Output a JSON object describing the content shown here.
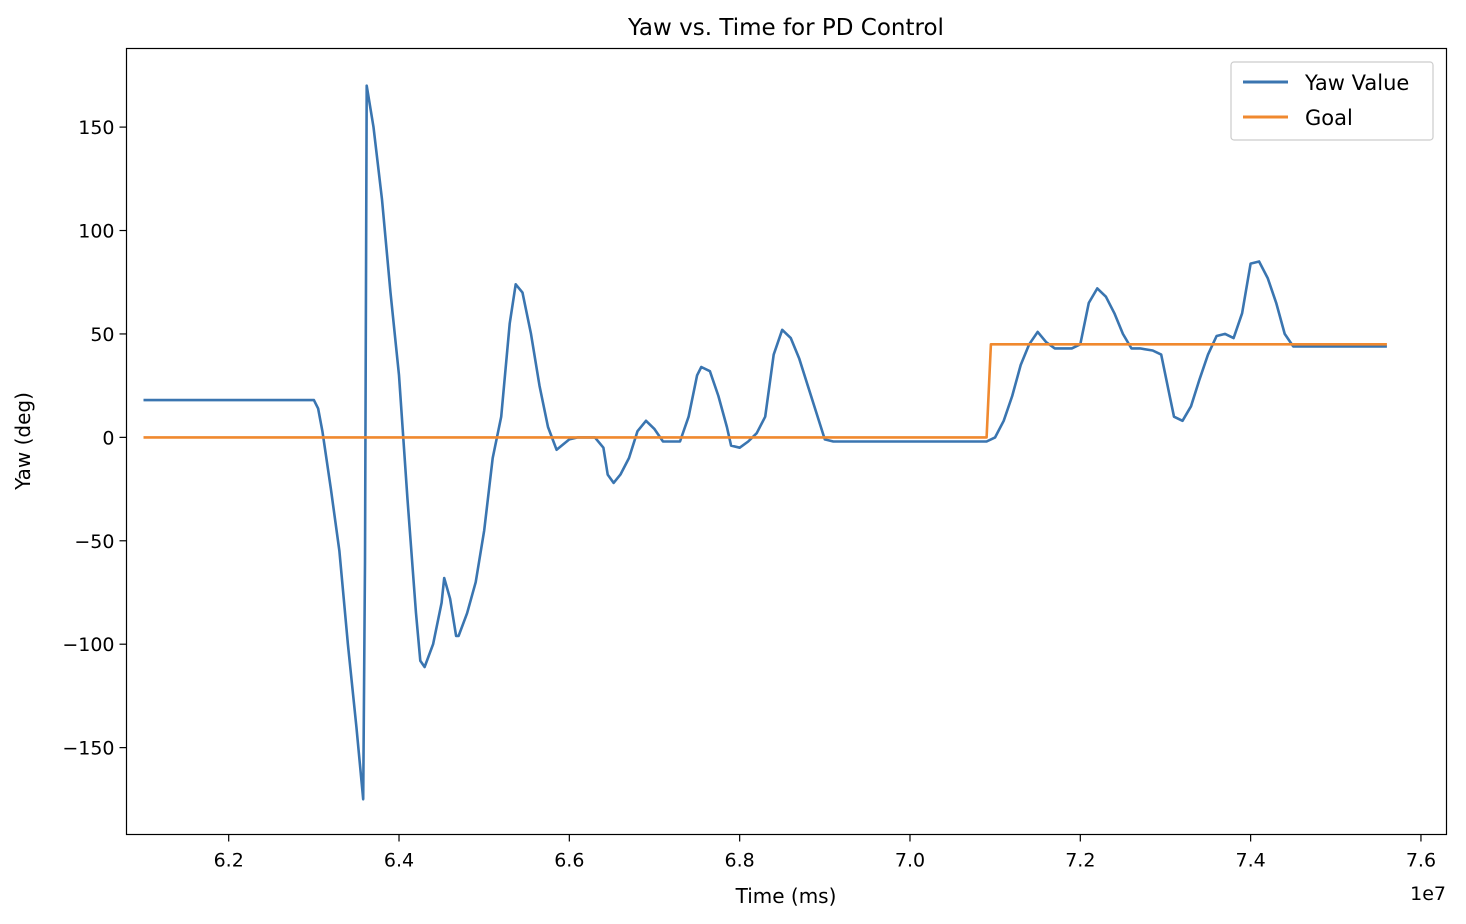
{
  "chart_data": {
    "type": "line",
    "title": "Yaw vs. Time for PD Control",
    "xlabel": "Time (ms)",
    "ylabel": "Yaw (deg)",
    "x_offset_label": "1e7",
    "xlim": [
      6.08,
      7.63
    ],
    "ylim": [
      -192,
      188
    ],
    "x_ticks": [
      6.2,
      6.4,
      6.6,
      6.8,
      7.0,
      7.2,
      7.4,
      7.6
    ],
    "x_tick_labels": [
      "6.2",
      "6.4",
      "6.6",
      "6.8",
      "7.0",
      "7.2",
      "7.4",
      "7.6"
    ],
    "y_ticks": [
      -150,
      -100,
      -50,
      0,
      50,
      100,
      150
    ],
    "y_tick_labels": [
      "−150",
      "−100",
      "−50",
      "0",
      "50",
      "100",
      "150"
    ],
    "grid": false,
    "legend_position": "top-right",
    "series": [
      {
        "name": "Yaw Value",
        "color": "#3a75b0",
        "points": [
          [
            6.1,
            18
          ],
          [
            6.3,
            18
          ],
          [
            6.305,
            14
          ],
          [
            6.31,
            3
          ],
          [
            6.32,
            -25
          ],
          [
            6.33,
            -55
          ],
          [
            6.34,
            -100
          ],
          [
            6.35,
            -140
          ],
          [
            6.358,
            -175
          ],
          [
            6.36,
            -60
          ],
          [
            6.362,
            170
          ],
          [
            6.37,
            150
          ],
          [
            6.38,
            115
          ],
          [
            6.39,
            70
          ],
          [
            6.4,
            30
          ],
          [
            6.41,
            -30
          ],
          [
            6.42,
            -85
          ],
          [
            6.425,
            -108
          ],
          [
            6.43,
            -111
          ],
          [
            6.44,
            -100
          ],
          [
            6.45,
            -80
          ],
          [
            6.453,
            -68
          ],
          [
            6.46,
            -78
          ],
          [
            6.467,
            -96
          ],
          [
            6.47,
            -96
          ],
          [
            6.48,
            -85
          ],
          [
            6.49,
            -70
          ],
          [
            6.5,
            -45
          ],
          [
            6.51,
            -10
          ],
          [
            6.52,
            10
          ],
          [
            6.53,
            55
          ],
          [
            6.537,
            74
          ],
          [
            6.545,
            70
          ],
          [
            6.555,
            50
          ],
          [
            6.565,
            25
          ],
          [
            6.575,
            5
          ],
          [
            6.585,
            -6
          ],
          [
            6.6,
            -1
          ],
          [
            6.61,
            0
          ],
          [
            6.63,
            0
          ],
          [
            6.64,
            -5
          ],
          [
            6.645,
            -18
          ],
          [
            6.652,
            -22
          ],
          [
            6.66,
            -18
          ],
          [
            6.67,
            -10
          ],
          [
            6.68,
            3
          ],
          [
            6.69,
            8
          ],
          [
            6.7,
            4
          ],
          [
            6.71,
            -2
          ],
          [
            6.73,
            -2
          ],
          [
            6.74,
            10
          ],
          [
            6.75,
            30
          ],
          [
            6.755,
            34
          ],
          [
            6.765,
            32
          ],
          [
            6.775,
            20
          ],
          [
            6.785,
            5
          ],
          [
            6.79,
            -4
          ],
          [
            6.8,
            -5
          ],
          [
            6.81,
            -2
          ],
          [
            6.82,
            2
          ],
          [
            6.83,
            10
          ],
          [
            6.84,
            40
          ],
          [
            6.85,
            52
          ],
          [
            6.86,
            48
          ],
          [
            6.87,
            38
          ],
          [
            6.88,
            25
          ],
          [
            6.89,
            12
          ],
          [
            6.9,
            -1
          ],
          [
            6.91,
            -2
          ],
          [
            7.09,
            -2
          ],
          [
            7.1,
            0
          ],
          [
            7.11,
            8
          ],
          [
            7.12,
            20
          ],
          [
            7.13,
            35
          ],
          [
            7.14,
            45
          ],
          [
            7.15,
            51
          ],
          [
            7.16,
            46
          ],
          [
            7.17,
            43
          ],
          [
            7.19,
            43
          ],
          [
            7.2,
            45
          ],
          [
            7.21,
            65
          ],
          [
            7.22,
            72
          ],
          [
            7.23,
            68
          ],
          [
            7.24,
            60
          ],
          [
            7.25,
            50
          ],
          [
            7.26,
            43
          ],
          [
            7.27,
            43
          ],
          [
            7.285,
            42
          ],
          [
            7.295,
            40
          ],
          [
            7.305,
            20
          ],
          [
            7.31,
            10
          ],
          [
            7.32,
            8
          ],
          [
            7.33,
            15
          ],
          [
            7.34,
            28
          ],
          [
            7.35,
            40
          ],
          [
            7.36,
            49
          ],
          [
            7.37,
            50
          ],
          [
            7.38,
            48
          ],
          [
            7.39,
            60
          ],
          [
            7.4,
            84
          ],
          [
            7.41,
            85
          ],
          [
            7.42,
            77
          ],
          [
            7.43,
            65
          ],
          [
            7.44,
            50
          ],
          [
            7.45,
            44
          ],
          [
            7.47,
            44
          ],
          [
            7.56,
            44
          ]
        ]
      },
      {
        "name": "Goal",
        "color": "#f0892f",
        "points": [
          [
            6.1,
            0
          ],
          [
            7.09,
            0
          ],
          [
            7.095,
            45
          ],
          [
            7.56,
            45
          ]
        ]
      }
    ]
  }
}
